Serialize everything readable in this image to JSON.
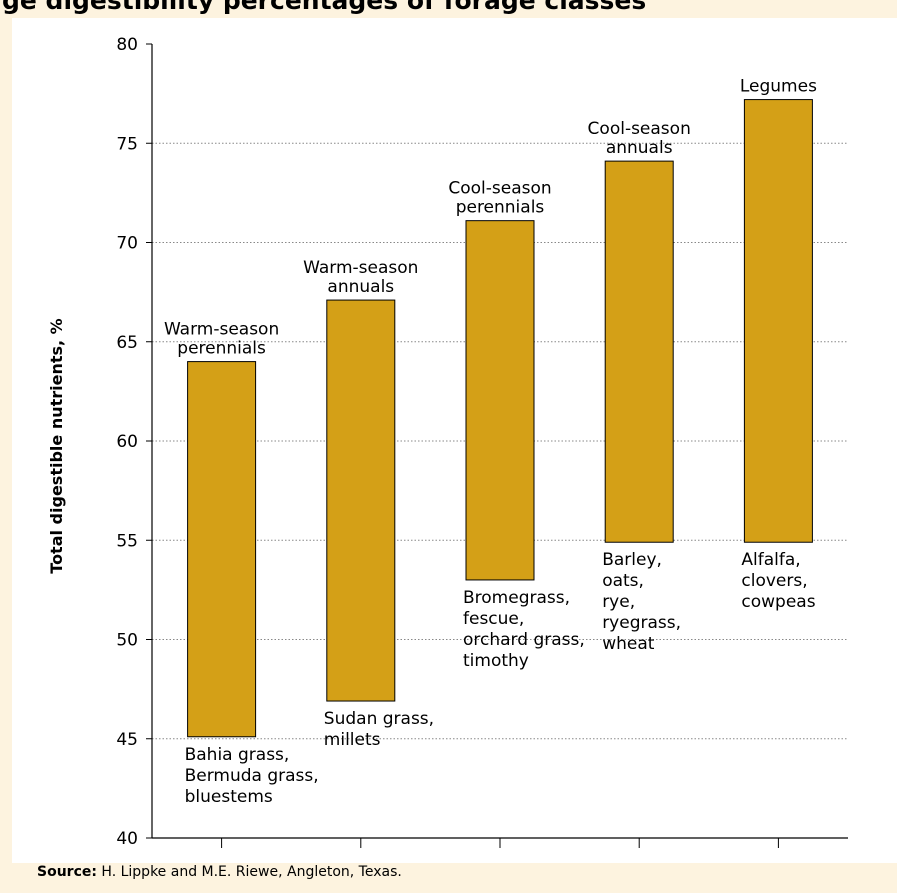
{
  "header": {
    "title": "ge digestibility percentages of forage classes"
  },
  "chart_data": {
    "type": "bar",
    "title": "",
    "xlabel": "",
    "ylabel": "Total digestible nutrients, %",
    "ylim": [
      40,
      80
    ],
    "yticks": [
      40,
      45,
      50,
      55,
      60,
      65,
      70,
      75,
      80
    ],
    "grid": "horizontal dotted",
    "categories": [
      "Warm-season perennials",
      "Warm-season annuals",
      "Cool-season perennials",
      "Cool-season annuals",
      "Legumes"
    ],
    "ranges": [
      {
        "low": 45.1,
        "high": 64.0,
        "top_label": [
          "Warm-season",
          "perennials"
        ],
        "bottom_label": [
          "Bahia grass,",
          "Bermuda grass,",
          "bluestems"
        ]
      },
      {
        "low": 46.9,
        "high": 67.1,
        "top_label": [
          "Warm-season",
          "annuals"
        ],
        "bottom_label": [
          "Sudan grass,",
          "millets"
        ]
      },
      {
        "low": 53.0,
        "high": 71.1,
        "top_label": [
          "Cool-season",
          "perennials"
        ],
        "bottom_label": [
          "Bromegrass,",
          "fescue,",
          "orchard grass,",
          "timothy"
        ]
      },
      {
        "low": 54.9,
        "high": 74.1,
        "top_label": [
          "Cool-season",
          "annuals"
        ],
        "bottom_label": [
          "Barley,",
          "oats,",
          "rye,",
          "ryegrass,",
          "wheat"
        ]
      },
      {
        "low": 54.9,
        "high": 77.2,
        "top_label": [
          "Legumes"
        ],
        "bottom_label": [
          "Alfalfa,",
          "clovers,",
          "cowpeas"
        ]
      }
    ],
    "colors": {
      "bar_fill": "#D4A017",
      "bar_stroke": "#000000",
      "grid": "#888888",
      "background": "#FDF3DF"
    }
  },
  "source": {
    "label": "Source:",
    "text": " H. Lippke and M.E. Riewe, Angleton, Texas."
  }
}
